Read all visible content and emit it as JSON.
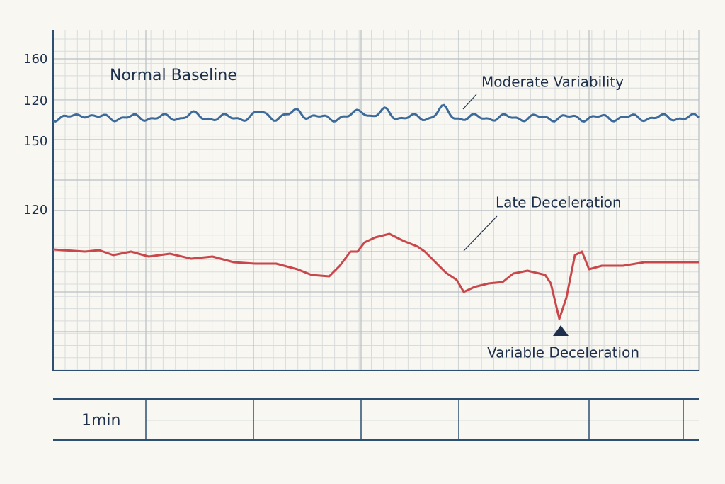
{
  "axis_labels": [
    "160",
    "120",
    "150",
    "120"
  ],
  "title": "Normal Baseline",
  "annotations": {
    "variability": "Moderate Variability",
    "late": "Late Deceleration",
    "variable": "Variable Deceleration"
  },
  "time_scale": "1min"
}
